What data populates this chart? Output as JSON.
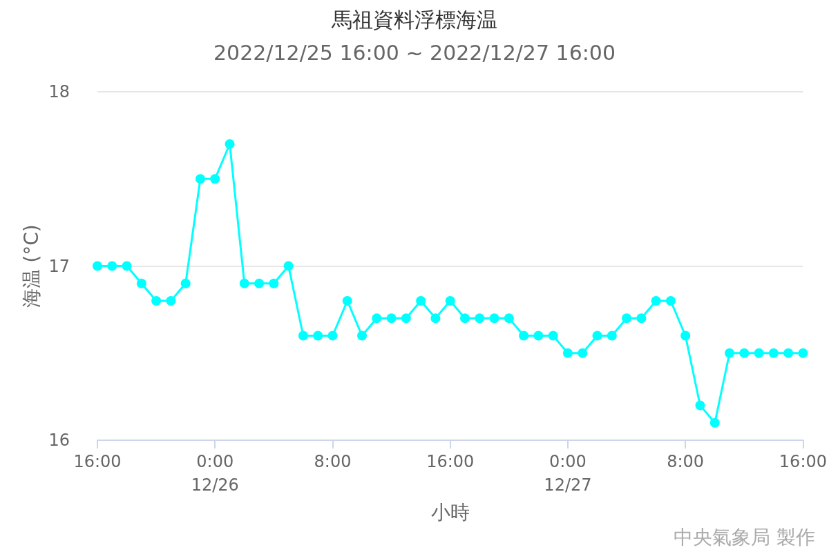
{
  "chart_data": {
    "type": "line",
    "title": "馬祖資料浮標海温",
    "subtitle": "2022/12/25 16:00 ~ 2022/12/27 16:00",
    "xlabel": "小時",
    "ylabel": "海温 (°C)",
    "x": [
      "2022-12-25T16:00",
      "2022-12-25T17:00",
      "2022-12-25T18:00",
      "2022-12-25T19:00",
      "2022-12-25T20:00",
      "2022-12-25T21:00",
      "2022-12-25T22:00",
      "2022-12-25T23:00",
      "2022-12-26T00:00",
      "2022-12-26T01:00",
      "2022-12-26T02:00",
      "2022-12-26T03:00",
      "2022-12-26T04:00",
      "2022-12-26T05:00",
      "2022-12-26T06:00",
      "2022-12-26T07:00",
      "2022-12-26T08:00",
      "2022-12-26T09:00",
      "2022-12-26T10:00",
      "2022-12-26T11:00",
      "2022-12-26T12:00",
      "2022-12-26T13:00",
      "2022-12-26T14:00",
      "2022-12-26T15:00",
      "2022-12-26T16:00",
      "2022-12-26T17:00",
      "2022-12-26T18:00",
      "2022-12-26T19:00",
      "2022-12-26T20:00",
      "2022-12-26T21:00",
      "2022-12-26T22:00",
      "2022-12-26T23:00",
      "2022-12-27T00:00",
      "2022-12-27T01:00",
      "2022-12-27T02:00",
      "2022-12-27T03:00",
      "2022-12-27T04:00",
      "2022-12-27T05:00",
      "2022-12-27T06:00",
      "2022-12-27T07:00",
      "2022-12-27T08:00",
      "2022-12-27T09:00",
      "2022-12-27T10:00",
      "2022-12-27T11:00",
      "2022-12-27T12:00",
      "2022-12-27T13:00",
      "2022-12-27T14:00",
      "2022-12-27T15:00",
      "2022-12-27T16:00"
    ],
    "series": [
      {
        "color": "#00ffff",
        "values": [
          17.0,
          17.0,
          17.0,
          16.9,
          16.8,
          16.8,
          16.9,
          17.5,
          17.5,
          17.7,
          16.9,
          16.9,
          16.9,
          17.0,
          16.6,
          16.6,
          16.6,
          16.8,
          16.6,
          16.7,
          16.7,
          16.7,
          16.8,
          16.7,
          16.8,
          16.7,
          16.7,
          16.7,
          16.7,
          16.6,
          16.6,
          16.6,
          16.5,
          16.5,
          16.6,
          16.6,
          16.7,
          16.7,
          16.8,
          16.8,
          16.6,
          16.2,
          16.1,
          16.5,
          16.5,
          16.5,
          16.5,
          16.5,
          16.5
        ]
      }
    ],
    "xlim": [
      "2022-12-25T16:00",
      "2022-12-27T16:00"
    ],
    "xticks": [
      {
        "value": "2022-12-25T16:00",
        "label": "16:00"
      },
      {
        "value": "2022-12-26T00:00",
        "label": "0:00\n12/26"
      },
      {
        "value": "2022-12-26T08:00",
        "label": "8:00"
      },
      {
        "value": "2022-12-26T16:00",
        "label": "16:00"
      },
      {
        "value": "2022-12-27T00:00",
        "label": "0:00\n12/27"
      },
      {
        "value": "2022-12-27T08:00",
        "label": "8:00"
      },
      {
        "value": "2022-12-27T16:00",
        "label": "16:00"
      }
    ],
    "ylim": [
      16,
      18
    ],
    "yticks": [
      16,
      17,
      18
    ],
    "grid": "y",
    "marker": "circle",
    "line_style": "solid",
    "annotations": [
      "中央氣象局 製作"
    ]
  }
}
